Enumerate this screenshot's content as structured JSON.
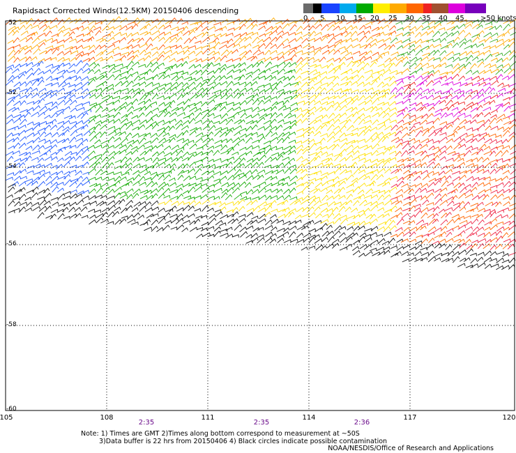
{
  "title": "Rapidsact Corrected Winds(12.5KM) 20150406 descending",
  "legend": {
    "labels": [
      "0",
      "5",
      "10",
      "15",
      "20",
      "25",
      "30",
      "35",
      "40",
      "45",
      ">50 knots"
    ],
    "colors": [
      "#6b6b6b",
      "#000000",
      "#1a44ff",
      "#00aaee",
      "#00aa00",
      "#ffee00",
      "#ffaa00",
      "#ff6600",
      "#ee2222",
      "#a05030",
      "#dd00dd",
      "#7700bb"
    ]
  },
  "map": {
    "lat_labels": [
      "-52",
      "-52",
      "-54",
      "-56",
      "-58",
      "-60"
    ],
    "lon_labels": [
      "105",
      "108",
      "111",
      "114",
      "117",
      "120"
    ],
    "time_labels": [
      "2:35",
      "2:35",
      "2:36"
    ]
  },
  "notes": {
    "line1": "Note: 1) Times are GMT 2)Times along bottom correspond to measurement at ~50S",
    "line2": "3)Data buffer is 22 hrs from 20150406 4) Black circles indicate possible contamination"
  },
  "credit": "NOAA/NESDIS/Office of Research and Applications"
}
